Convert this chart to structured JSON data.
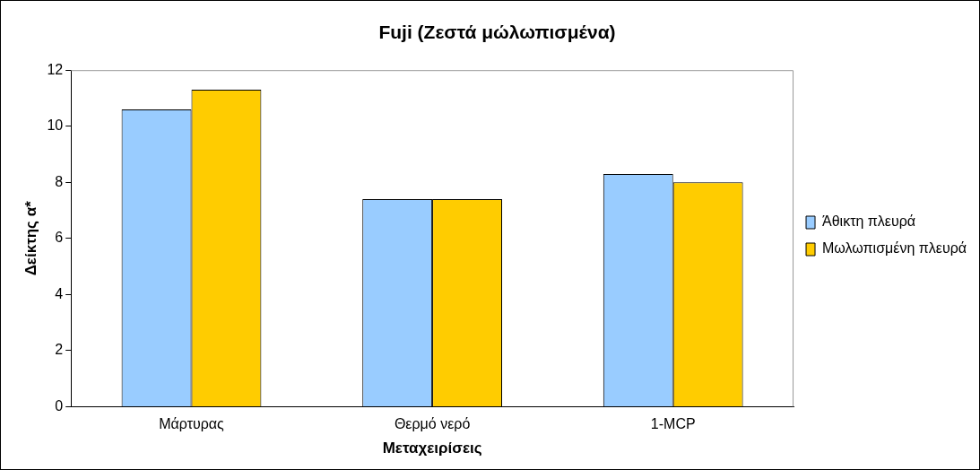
{
  "chart_data": {
    "type": "bar",
    "title": "Fuji (Ζεστά μώλωπισμένα)",
    "xlabel": "Μεταχειρίσεις",
    "ylabel": "Δείκτης α*",
    "categories": [
      "Μάρτυρας",
      "Θερμό νερό",
      "1-MCP"
    ],
    "series": [
      {
        "name": "Άθικτη πλευρά",
        "color": "#99ccff",
        "values": [
          10.6,
          7.4,
          8.3
        ]
      },
      {
        "name": "Μωλωπισμένη πλευρά",
        "color": "#ffcc00",
        "values": [
          11.3,
          7.4,
          8.0
        ]
      }
    ],
    "ylim": [
      0,
      12
    ],
    "yticks": [
      0,
      2,
      4,
      6,
      8,
      10,
      12
    ],
    "grid": false,
    "legend": "right"
  }
}
